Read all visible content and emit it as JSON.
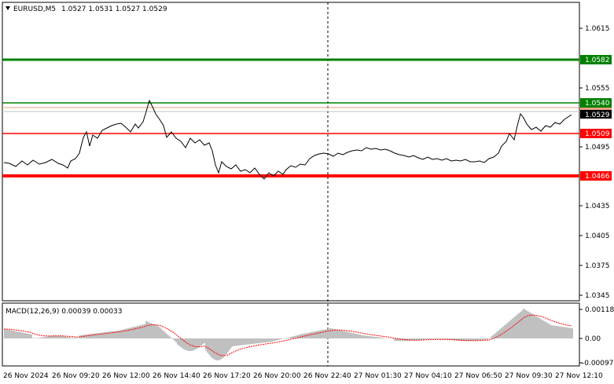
{
  "header": {
    "symbol": "EURUSD,M5",
    "ohlc": "1.0527 1.0531 1.0527 1.0529",
    "menu_icon": "triangle-down-icon"
  },
  "price_axis": {
    "labels": [
      "1.0615",
      "1.0555",
      "1.0495",
      "1.0435",
      "1.0405",
      "1.0375",
      "1.0345"
    ],
    "range": [
      1.0338,
      1.0638
    ]
  },
  "levels": {
    "level_1": {
      "value": "1.0582",
      "color": "#008000"
    },
    "level_2": {
      "value": "1.0540",
      "color": "#008000"
    },
    "current": {
      "value": "1.0529",
      "color": "#000000"
    },
    "level_3": {
      "value": "1.0509",
      "color": "#ff0000"
    },
    "level_4": {
      "value": "1.0466",
      "color": "#ff0000"
    }
  },
  "macd": {
    "label": "MACD(12,26,9) 0.00039 0.00033",
    "axis_labels": [
      "0.00118",
      "0.00",
      "-0.00097"
    ],
    "histogram_color": "#c0c0c0",
    "signal_color": "#ff0000"
  },
  "time_axis": {
    "labels": [
      "26 Nov 2024",
      "26 Nov 09:20",
      "26 Nov 12:00",
      "26 Nov 14:40",
      "26 Nov 17:20",
      "26 Nov 20:00",
      "26 Nov 22:40",
      "27 Nov 01:30",
      "27 Nov 04:10",
      "27 Nov 06:50",
      "27 Nov 09:30",
      "27 Nov 12:10"
    ]
  },
  "chart_data": {
    "type": "line",
    "series": [
      {
        "x": [
          "26 Nov 2024",
          "26 Nov 09:20",
          "26 Nov 12:00",
          "26 Nov 14:40",
          "26 Nov 17:20",
          "26 Nov 20:00",
          "26 Nov 22:40",
          "27 Nov 01:30",
          "27 Nov 04:10",
          "27 Nov 06:50",
          "27 Nov 09:30",
          "27 Nov 12:10"
        ],
        "values": [
          1.0488,
          1.0507,
          1.0518,
          1.0502,
          1.047,
          1.0467,
          1.0487,
          1.049,
          1.0485,
          1.0484,
          1.052,
          1.0529
        ]
      }
    ],
    "ylim": [
      1.0338,
      1.0638
    ]
  }
}
